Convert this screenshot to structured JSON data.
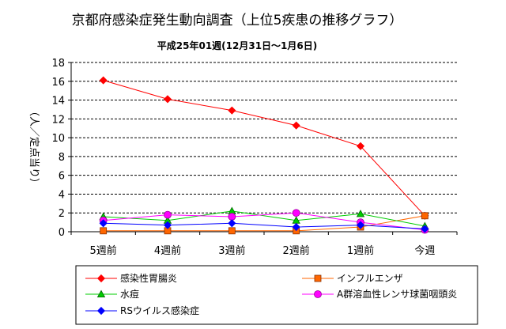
{
  "chart_data": {
    "type": "line",
    "title": "京都府感染症発生動向調査（上位5疾患の推移グラフ）",
    "subtitle": "平成25年01週(12月31日～1月6日)",
    "ylabel": "（人／定点当り）",
    "xlabel": "",
    "ylim": [
      0,
      18
    ],
    "yticks": [
      0,
      2,
      4,
      6,
      8,
      10,
      12,
      14,
      16,
      18
    ],
    "grid": true,
    "legend_position": "bottom",
    "categories": [
      "5週前",
      "4週前",
      "3週前",
      "2週前",
      "1週前",
      "今週"
    ],
    "series": [
      {
        "name": "感染性胃腸炎",
        "color": "#ff0000",
        "marker": "diamond",
        "values": [
          16.1,
          14.1,
          12.9,
          11.3,
          9.1,
          1.7
        ]
      },
      {
        "name": "インフルエンザ",
        "color": "#ff6600",
        "marker": "square",
        "values": [
          0.1,
          0.1,
          0.1,
          0.1,
          0.5,
          1.7
        ]
      },
      {
        "name": "水痘",
        "color": "#00cc00",
        "marker": "triangle",
        "values": [
          1.6,
          1.2,
          2.2,
          1.2,
          1.9,
          0.6
        ]
      },
      {
        "name": "A群溶血性レンサ球菌咽頭炎",
        "color": "#ff00ff",
        "marker": "circle",
        "values": [
          1.2,
          1.8,
          1.6,
          2.0,
          1.0,
          0.2
        ]
      },
      {
        "name": "RSウイルス感染症",
        "color": "#0000ff",
        "marker": "diamond",
        "values": [
          0.9,
          0.7,
          0.9,
          0.5,
          0.7,
          0.3
        ]
      }
    ]
  }
}
